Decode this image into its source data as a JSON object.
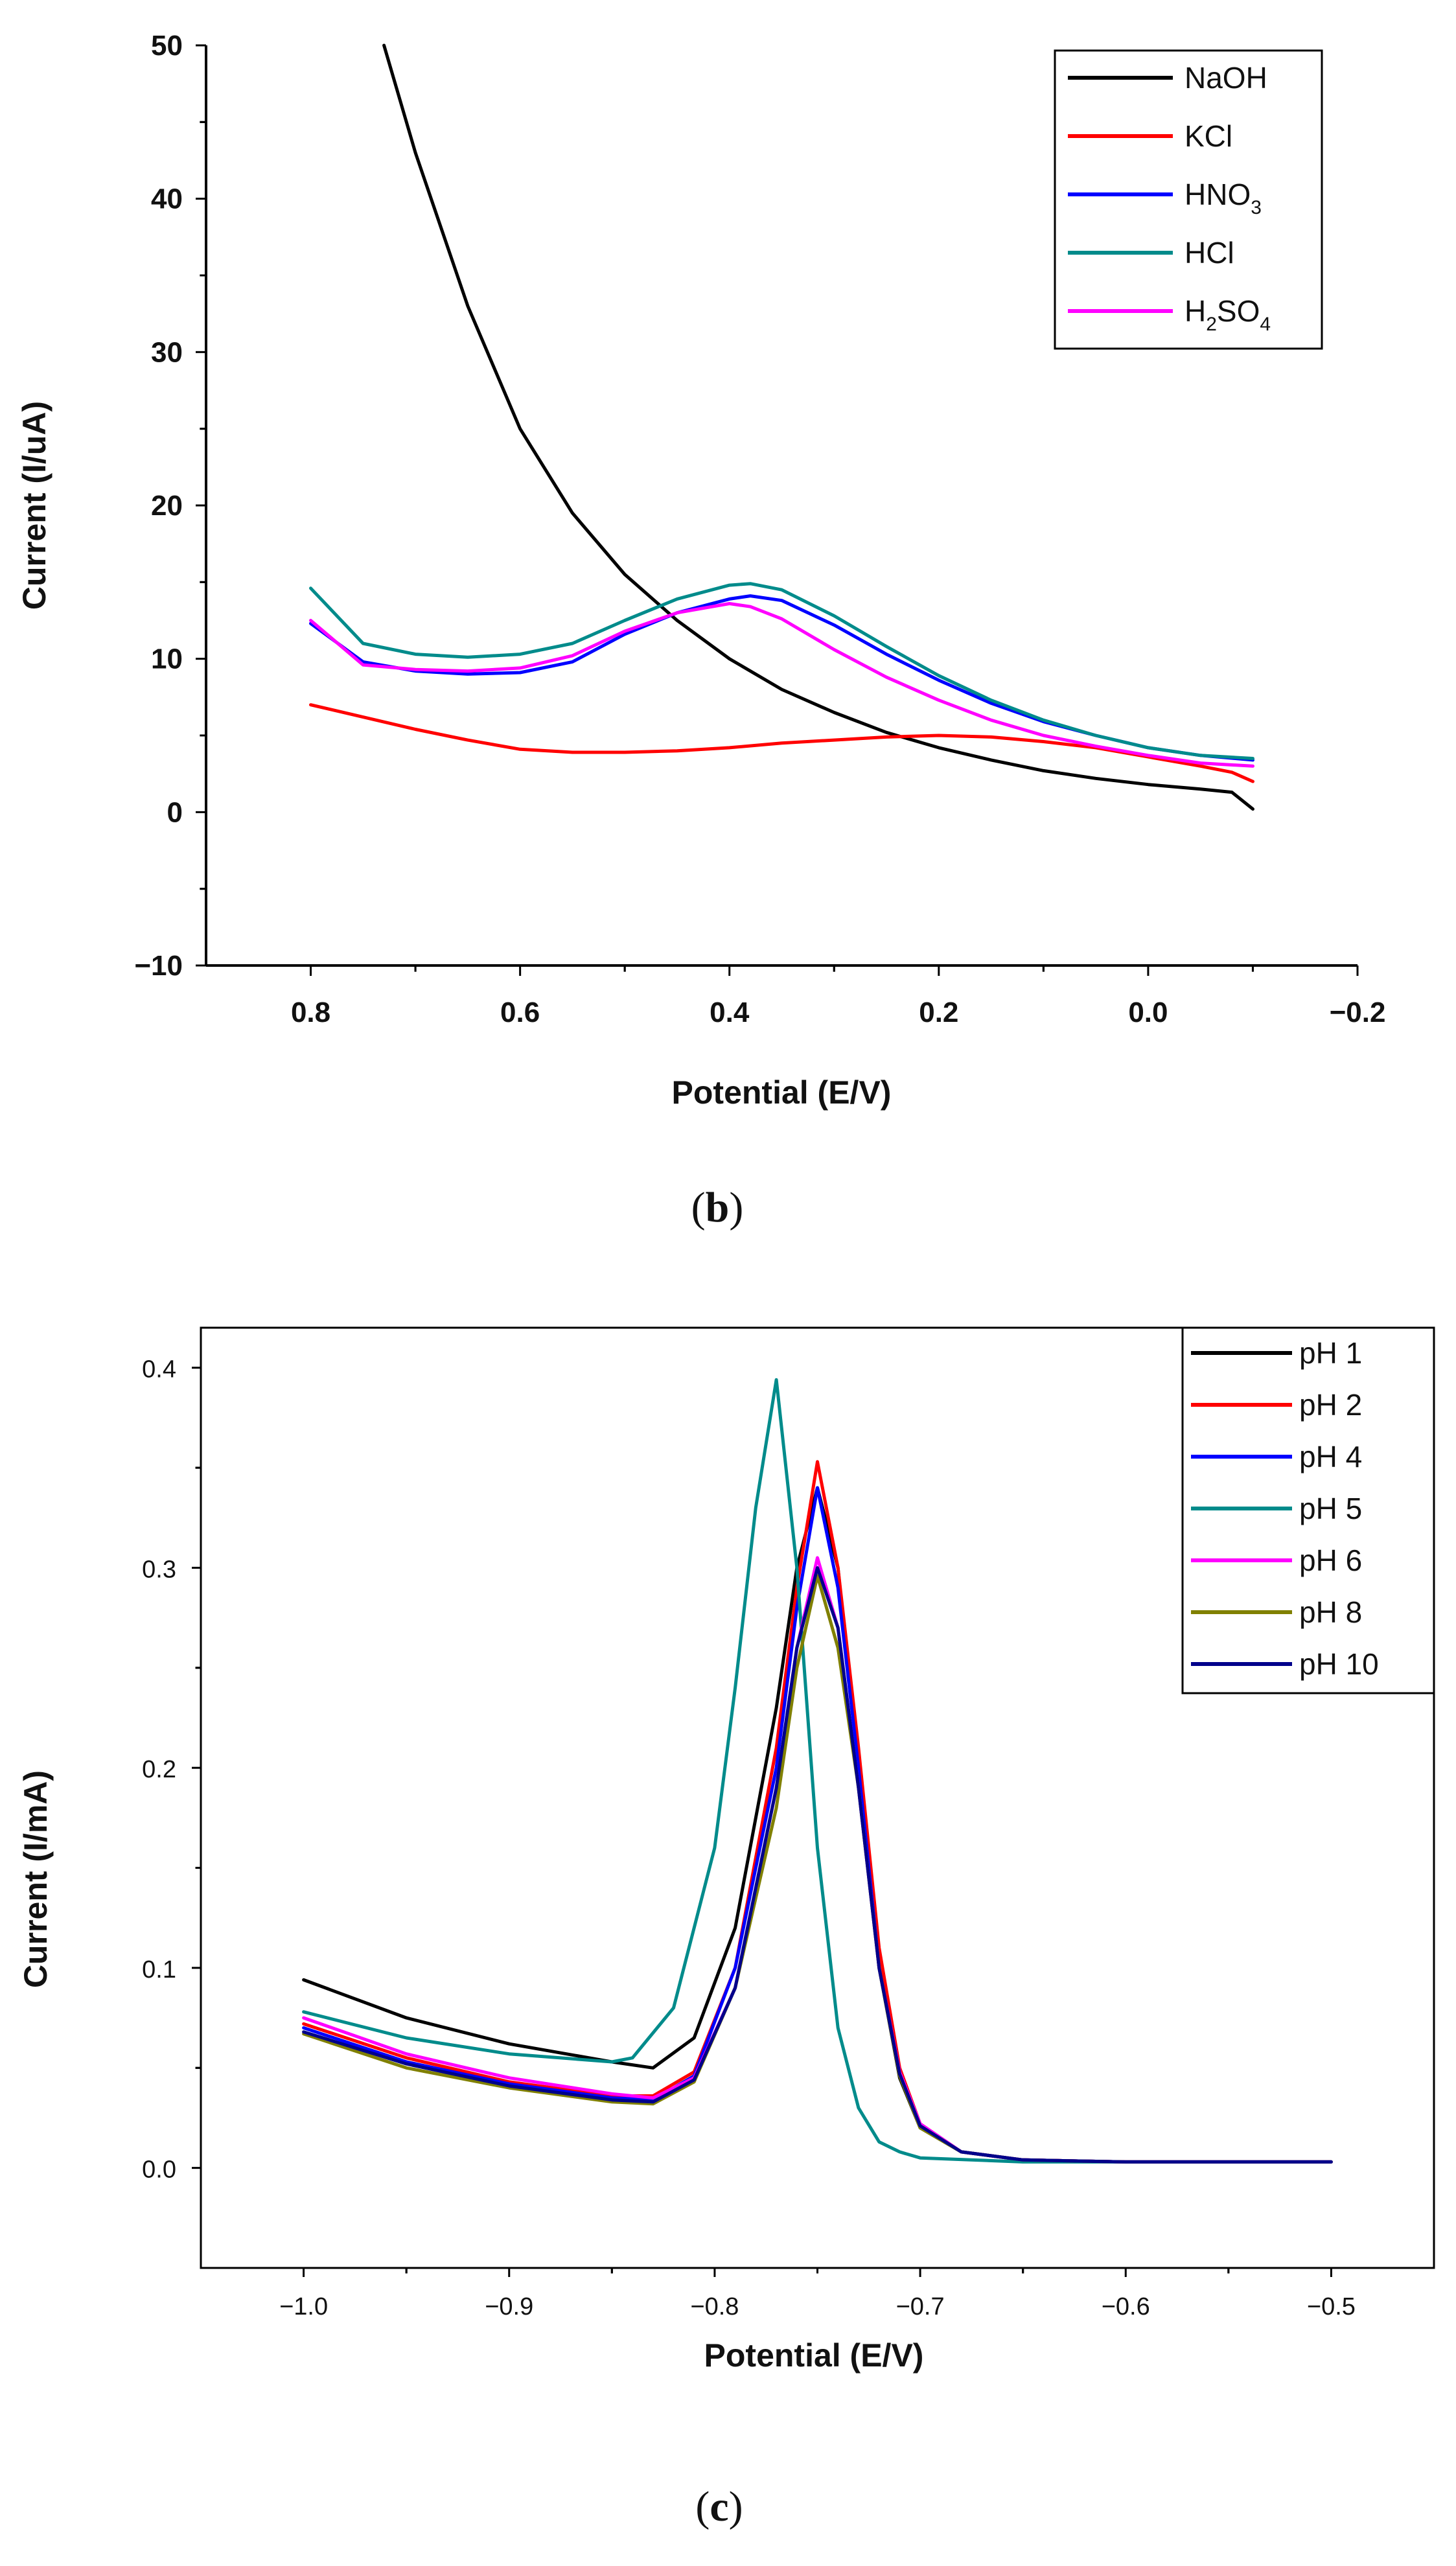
{
  "chart_data": [
    {
      "type": "line",
      "panel": "b",
      "title": "",
      "xlabel": "Potential (E/V)",
      "ylabel": "Current (I/uA)",
      "xlim": [
        0.9,
        -0.2
      ],
      "ylim": [
        -10,
        50
      ],
      "x_ticks": [
        0.8,
        0.6,
        0.4,
        0.2,
        0.0,
        -0.2
      ],
      "x_tick_labels": [
        "0.8",
        "0.6",
        "0.4",
        "0.2",
        "0.0",
        "−0.2"
      ],
      "y_ticks": [
        -10,
        0,
        10,
        20,
        30,
        40,
        50
      ],
      "y_tick_labels": [
        "−10",
        "0",
        "10",
        "20",
        "30",
        "40",
        "50"
      ],
      "legend_position": "top-right",
      "grid": false,
      "series": [
        {
          "name": "NaOH",
          "legend": {
            "main": "NaOH"
          },
          "color": "#000000",
          "x": [
            0.73,
            0.7,
            0.65,
            0.6,
            0.55,
            0.5,
            0.45,
            0.4,
            0.35,
            0.3,
            0.25,
            0.2,
            0.15,
            0.1,
            0.05,
            0.0,
            -0.05,
            -0.08,
            -0.1
          ],
          "y": [
            50,
            43,
            33,
            25,
            19.5,
            15.5,
            12.5,
            10,
            8,
            6.5,
            5.2,
            4.2,
            3.4,
            2.7,
            2.2,
            1.8,
            1.5,
            1.3,
            0.2
          ]
        },
        {
          "name": "KCl",
          "legend": {
            "main": "KCl"
          },
          "color": "#ff0000",
          "x": [
            0.8,
            0.7,
            0.65,
            0.6,
            0.55,
            0.5,
            0.45,
            0.4,
            0.35,
            0.3,
            0.25,
            0.2,
            0.15,
            0.1,
            0.05,
            0.0,
            -0.05,
            -0.08,
            -0.1
          ],
          "y": [
            7,
            5.4,
            4.7,
            4.1,
            3.9,
            3.9,
            4.0,
            4.2,
            4.5,
            4.7,
            4.9,
            5.0,
            4.9,
            4.6,
            4.2,
            3.6,
            3.0,
            2.6,
            2.0
          ]
        },
        {
          "name": "HNO3",
          "legend": {
            "main": "HNO",
            "sub": "3",
            "after": ""
          },
          "color": "#0000ff",
          "x": [
            0.8,
            0.75,
            0.7,
            0.65,
            0.6,
            0.55,
            0.5,
            0.45,
            0.4,
            0.38,
            0.35,
            0.3,
            0.25,
            0.2,
            0.15,
            0.1,
            0.05,
            0.0,
            -0.05,
            -0.1
          ],
          "y": [
            12.3,
            9.8,
            9.2,
            9.0,
            9.1,
            9.8,
            11.6,
            13.0,
            13.9,
            14.1,
            13.8,
            12.2,
            10.3,
            8.6,
            7.1,
            5.9,
            5.0,
            4.2,
            3.7,
            3.4
          ]
        },
        {
          "name": "HCl",
          "legend": {
            "main": "HCl"
          },
          "color": "#008b8b",
          "x": [
            0.8,
            0.75,
            0.7,
            0.65,
            0.6,
            0.55,
            0.5,
            0.45,
            0.4,
            0.38,
            0.35,
            0.3,
            0.25,
            0.2,
            0.15,
            0.1,
            0.05,
            0.0,
            -0.05,
            -0.1
          ],
          "y": [
            14.6,
            11.0,
            10.3,
            10.1,
            10.3,
            11.0,
            12.5,
            13.9,
            14.8,
            14.9,
            14.5,
            12.8,
            10.8,
            8.9,
            7.3,
            6.0,
            5.0,
            4.2,
            3.7,
            3.5
          ]
        },
        {
          "name": "H2SO4",
          "legend": {
            "main": "H",
            "sub": "2",
            "after": "SO",
            "sub2": "4"
          },
          "color": "#ff00ff",
          "x": [
            0.8,
            0.75,
            0.7,
            0.65,
            0.6,
            0.55,
            0.5,
            0.45,
            0.4,
            0.38,
            0.35,
            0.3,
            0.25,
            0.2,
            0.15,
            0.1,
            0.05,
            0.0,
            -0.05,
            -0.1
          ],
          "y": [
            12.5,
            9.6,
            9.3,
            9.2,
            9.4,
            10.2,
            11.8,
            13.0,
            13.6,
            13.4,
            12.6,
            10.6,
            8.8,
            7.3,
            6.0,
            5.0,
            4.3,
            3.7,
            3.2,
            3.0
          ]
        }
      ]
    },
    {
      "type": "line",
      "panel": "c",
      "title": "",
      "xlabel": "Potential (E/V)",
      "ylabel": "Current (I/mA)",
      "xlim": [
        -1.05,
        -0.45
      ],
      "ylim": [
        -0.05,
        0.42
      ],
      "x_ticks": [
        -1.0,
        -0.9,
        -0.8,
        -0.7,
        -0.6,
        -0.5
      ],
      "x_tick_labels": [
        "−1.0",
        "−0.9",
        "−0.8",
        "−0.7",
        "−0.6",
        "−0.5"
      ],
      "y_ticks": [
        0.0,
        0.1,
        0.2,
        0.3,
        0.4
      ],
      "y_tick_labels": [
        "0.0",
        "0.1",
        "0.2",
        "0.3",
        "0.4"
      ],
      "legend_position": "top-right",
      "grid": false,
      "series": [
        {
          "name": "pH 1",
          "legend": {
            "main": "pH  1"
          },
          "color": "#000000",
          "x": [
            -1.0,
            -0.95,
            -0.9,
            -0.85,
            -0.83,
            -0.81,
            -0.79,
            -0.77,
            -0.76,
            -0.75,
            -0.74,
            -0.73,
            -0.72,
            -0.71,
            -0.7,
            -0.68,
            -0.65,
            -0.6,
            -0.5
          ],
          "y": [
            0.094,
            0.075,
            0.062,
            0.053,
            0.05,
            0.065,
            0.12,
            0.23,
            0.3,
            0.34,
            0.3,
            0.2,
            0.1,
            0.045,
            0.02,
            0.008,
            0.004,
            0.003,
            0.003
          ]
        },
        {
          "name": "pH 2",
          "legend": {
            "main": "pH  2"
          },
          "color": "#ff0000",
          "x": [
            -1.0,
            -0.95,
            -0.9,
            -0.85,
            -0.83,
            -0.81,
            -0.79,
            -0.77,
            -0.76,
            -0.75,
            -0.74,
            -0.73,
            -0.72,
            -0.71,
            -0.7,
            -0.68,
            -0.65,
            -0.6,
            -0.5
          ],
          "y": [
            0.072,
            0.055,
            0.043,
            0.036,
            0.036,
            0.048,
            0.1,
            0.21,
            0.29,
            0.353,
            0.3,
            0.21,
            0.11,
            0.05,
            0.022,
            0.008,
            0.004,
            0.003,
            0.003
          ]
        },
        {
          "name": "pH 4",
          "legend": {
            "main": "pH  4"
          },
          "color": "#0000ff",
          "x": [
            -1.0,
            -0.95,
            -0.9,
            -0.85,
            -0.83,
            -0.81,
            -0.79,
            -0.77,
            -0.76,
            -0.75,
            -0.74,
            -0.73,
            -0.72,
            -0.71,
            -0.7,
            -0.68,
            -0.65,
            -0.6,
            -0.5
          ],
          "y": [
            0.07,
            0.053,
            0.042,
            0.035,
            0.034,
            0.046,
            0.1,
            0.2,
            0.28,
            0.34,
            0.29,
            0.2,
            0.1,
            0.048,
            0.021,
            0.008,
            0.004,
            0.003,
            0.003
          ]
        },
        {
          "name": "pH 5",
          "legend": {
            "main": "pH  5"
          },
          "color": "#008b8b",
          "x": [
            -1.0,
            -0.95,
            -0.9,
            -0.85,
            -0.84,
            -0.82,
            -0.8,
            -0.79,
            -0.78,
            -0.77,
            -0.76,
            -0.75,
            -0.74,
            -0.73,
            -0.72,
            -0.71,
            -0.7,
            -0.65,
            -0.5
          ],
          "y": [
            0.078,
            0.065,
            0.057,
            0.053,
            0.055,
            0.08,
            0.16,
            0.24,
            0.33,
            0.394,
            0.3,
            0.16,
            0.07,
            0.03,
            0.013,
            0.008,
            0.005,
            0.003,
            0.003
          ]
        },
        {
          "name": "pH 6",
          "legend": {
            "main": "pH  6"
          },
          "color": "#ff00ff",
          "x": [
            -1.0,
            -0.95,
            -0.9,
            -0.85,
            -0.83,
            -0.81,
            -0.79,
            -0.77,
            -0.76,
            -0.75,
            -0.74,
            -0.73,
            -0.72,
            -0.71,
            -0.7,
            -0.68,
            -0.65,
            -0.6,
            -0.5
          ],
          "y": [
            0.075,
            0.057,
            0.045,
            0.037,
            0.035,
            0.045,
            0.09,
            0.19,
            0.26,
            0.305,
            0.27,
            0.19,
            0.1,
            0.048,
            0.022,
            0.008,
            0.004,
            0.003,
            0.003
          ]
        },
        {
          "name": "pH 8",
          "legend": {
            "main": "pH  8"
          },
          "color": "#808000",
          "x": [
            -1.0,
            -0.95,
            -0.9,
            -0.85,
            -0.83,
            -0.81,
            -0.79,
            -0.77,
            -0.76,
            -0.75,
            -0.74,
            -0.73,
            -0.72,
            -0.71,
            -0.7,
            -0.68,
            -0.65,
            -0.6,
            -0.5
          ],
          "y": [
            0.067,
            0.05,
            0.04,
            0.033,
            0.032,
            0.043,
            0.09,
            0.18,
            0.25,
            0.296,
            0.26,
            0.19,
            0.1,
            0.046,
            0.02,
            0.008,
            0.004,
            0.003,
            0.003
          ]
        },
        {
          "name": "pH 10",
          "legend": {
            "main": "pH  10"
          },
          "color": "#00008b",
          "x": [
            -1.0,
            -0.95,
            -0.9,
            -0.85,
            -0.83,
            -0.81,
            -0.79,
            -0.77,
            -0.76,
            -0.75,
            -0.74,
            -0.73,
            -0.72,
            -0.71,
            -0.7,
            -0.68,
            -0.65,
            -0.6,
            -0.5
          ],
          "y": [
            0.068,
            0.052,
            0.041,
            0.034,
            0.033,
            0.044,
            0.09,
            0.19,
            0.26,
            0.3,
            0.27,
            0.19,
            0.1,
            0.047,
            0.021,
            0.008,
            0.004,
            0.003,
            0.003
          ]
        }
      ]
    }
  ],
  "captions": {
    "b": {
      "open": "(",
      "letter": "b",
      "close": ")"
    },
    "c": {
      "open": "(",
      "letter": "c",
      "close": ")"
    }
  }
}
